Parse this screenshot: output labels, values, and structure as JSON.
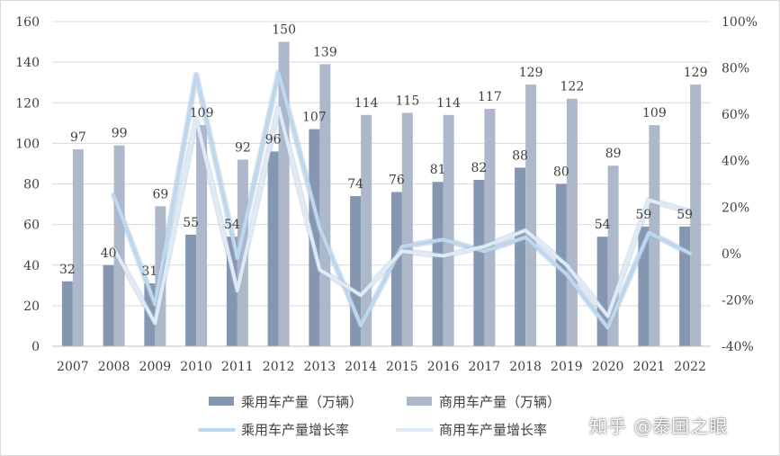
{
  "chart_data": {
    "type": "bar",
    "categories": [
      "2007",
      "2008",
      "2009",
      "2010",
      "2011",
      "2012",
      "2013",
      "2014",
      "2015",
      "2016",
      "2017",
      "2018",
      "2019",
      "2020",
      "2021",
      "2022"
    ],
    "series": [
      {
        "name": "乘用车产量（万辆）",
        "kind": "bar",
        "axis": "left",
        "color": "#8496b0",
        "values": [
          32,
          40,
          31,
          55,
          54,
          96,
          107,
          74,
          76,
          81,
          82,
          88,
          80,
          54,
          59,
          59
        ]
      },
      {
        "name": "商用车产量（万辆）",
        "kind": "bar",
        "axis": "left",
        "color": "#adb9ca",
        "values": [
          97,
          99,
          69,
          109,
          92,
          150,
          139,
          114,
          115,
          114,
          117,
          129,
          122,
          89,
          109,
          129
        ]
      },
      {
        "name": "乘用车产量增长率",
        "kind": "line",
        "axis": "right",
        "color": "#bdd7ee",
        "values": [
          null,
          25,
          -22,
          77,
          -2,
          78,
          11,
          -31,
          3,
          6,
          1,
          7,
          -9,
          -32,
          9,
          0
        ]
      },
      {
        "name": "商用车产量增长率",
        "kind": "line",
        "axis": "right",
        "color": "#deebf7",
        "values": [
          null,
          2,
          -30,
          58,
          -16,
          63,
          -7,
          -18,
          1,
          -1,
          3,
          10,
          -5,
          -27,
          23,
          18
        ]
      }
    ],
    "y_left": {
      "min": 0,
      "max": 160,
      "step": 20
    },
    "y_right": {
      "min": -40,
      "max": 100,
      "step": 20
    },
    "y_right_ticks": [
      "-40%",
      "-20%",
      "0%",
      "20%",
      "40%",
      "60%",
      "80%",
      "100%"
    ],
    "grid": true,
    "legend_position": "bottom"
  },
  "watermark": "知乎 @泰国之眼"
}
